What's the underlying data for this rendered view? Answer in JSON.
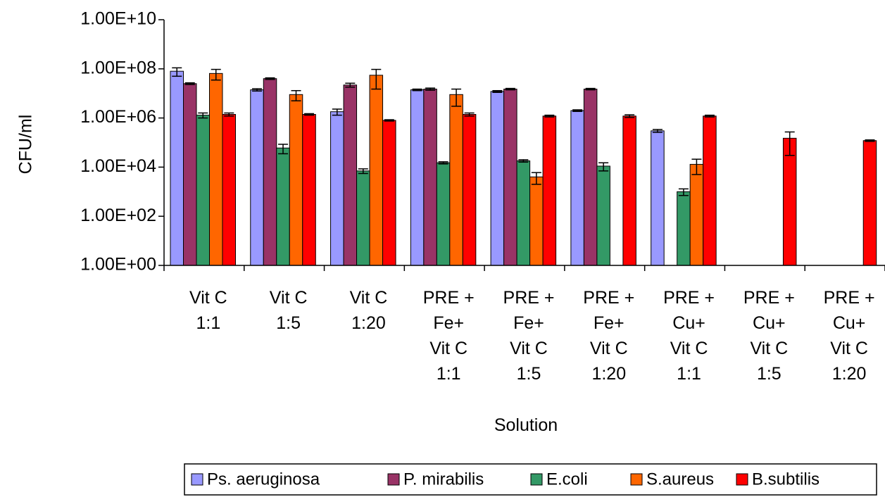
{
  "chart_data": {
    "type": "bar",
    "title": "",
    "xlabel": "Solution",
    "ylabel": "CFU/ml",
    "yscale": "log",
    "ylim": [
      1,
      10000000000
    ],
    "yticks": [
      1,
      100,
      10000,
      1000000,
      100000000,
      10000000000
    ],
    "ytick_labels": [
      "1.00E+00",
      "1.00E+02",
      "1.00E+04",
      "1.00E+06",
      "1.00E+08",
      "1.00E+10"
    ],
    "grid": false,
    "legend_position": "bottom",
    "categories": [
      [
        "Vit C",
        "1:1"
      ],
      [
        "Vit C",
        "1:5"
      ],
      [
        "Vit C",
        "1:20"
      ],
      [
        "PRE +",
        "Fe+",
        "Vit C",
        "1:1"
      ],
      [
        "PRE +",
        "Fe+",
        "Vit C",
        "1:5"
      ],
      [
        "PRE +",
        "Fe+",
        "Vit C",
        "1:20"
      ],
      [
        "PRE +",
        "Cu+",
        "Vit C",
        "1:1"
      ],
      [
        "PRE +",
        "Cu+",
        "Vit C",
        "1:5"
      ],
      [
        "PRE +",
        "Cu+",
        "Vit C",
        "1:20"
      ]
    ],
    "series": [
      {
        "name": "Ps. aeruginosa",
        "color": "#9999ff",
        "values": [
          80000000,
          14000000,
          1800000,
          14000000,
          12000000,
          2000000,
          300000,
          null,
          null
        ],
        "errors": [
          30000000,
          1500000,
          500000,
          1000000,
          1000000,
          150000,
          40000,
          null,
          null
        ]
      },
      {
        "name": "P. mirabilis",
        "color": "#993366",
        "values": [
          25000000,
          40000000,
          22000000,
          15000000,
          15000000,
          15000000,
          null,
          null,
          null
        ],
        "errors": [
          2000000,
          3000000,
          4000000,
          1500000,
          1000000,
          1000000,
          null,
          null,
          null
        ]
      },
      {
        "name": "E.coli",
        "color": "#339966",
        "values": [
          1300000,
          60000,
          7000,
          15000,
          18000,
          11000,
          1000,
          null,
          null
        ],
        "errors": [
          300000,
          25000,
          1500,
          1500,
          2000,
          4000,
          300,
          null,
          null
        ]
      },
      {
        "name": "S.aureus",
        "color": "#ff6600",
        "values": [
          65000000,
          9000000,
          55000000,
          9000000,
          4000,
          null,
          13000,
          null,
          null
        ],
        "errors": [
          30000000,
          4000000,
          40000000,
          6000000,
          2000,
          null,
          8000,
          null,
          null
        ]
      },
      {
        "name": "B.subtilis",
        "color": "#ff0000",
        "values": [
          1400000,
          1400000,
          800000,
          1400000,
          1200000,
          1200000,
          1200000,
          150000,
          120000
        ],
        "errors": [
          200000,
          100000,
          50000,
          200000,
          100000,
          150000,
          100000,
          120000,
          8000
        ]
      }
    ]
  }
}
